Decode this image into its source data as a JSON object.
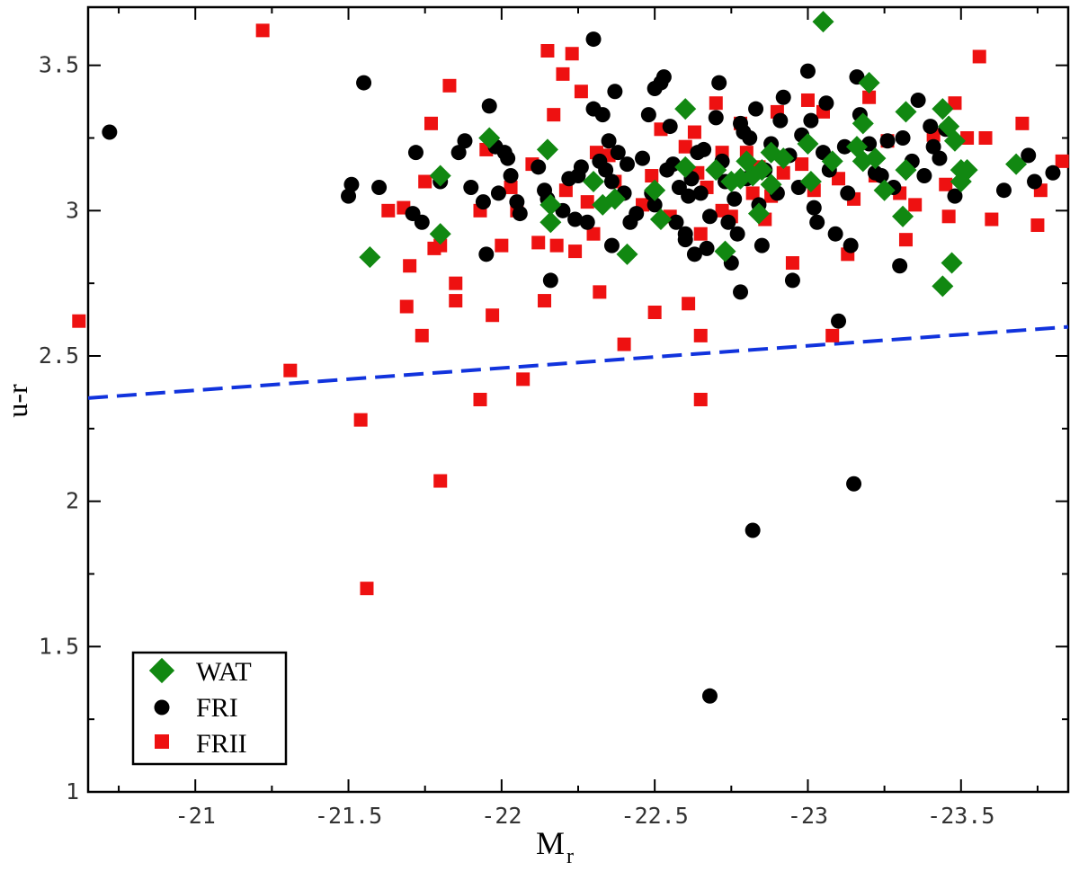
{
  "chart_data": {
    "type": "scatter",
    "title": "",
    "xlabel_main": "M",
    "xlabel_sub": "r",
    "ylabel": "u-r",
    "xlim": [
      -20.65,
      -23.85
    ],
    "ylim": [
      1,
      3.7
    ],
    "x_ticks": [
      -21,
      -21.5,
      -22,
      -22.5,
      -23,
      -23.5
    ],
    "x_tick_labels": [
      "-21",
      "-21.5",
      "-22",
      "-22.5",
      "-23",
      "-23.5"
    ],
    "y_ticks": [
      1,
      1.5,
      2,
      2.5,
      3,
      3.5
    ],
    "y_tick_labels": [
      "1",
      "1.5",
      "2",
      "2.5",
      "3",
      "3.5"
    ],
    "grid": false,
    "legend_position": "bottom-left",
    "legend": [
      {
        "label": "WAT",
        "marker": "diamond",
        "color": "#118811"
      },
      {
        "label": "FRI",
        "marker": "circle",
        "color": "#000000"
      },
      {
        "label": "FRII",
        "marker": "square",
        "color": "#ee1111"
      }
    ],
    "reference_line": {
      "style": "dashed",
      "color": "#1133dd",
      "x": [
        -20.65,
        -23.85
      ],
      "y": [
        2.355,
        2.6
      ]
    },
    "series": [
      {
        "name": "WAT",
        "marker": "diamond",
        "color": "#118811",
        "points": [
          [
            -21.57,
            2.84
          ],
          [
            -21.8,
            3.12
          ],
          [
            -21.8,
            2.92
          ],
          [
            -21.96,
            3.25
          ],
          [
            -22.15,
            3.21
          ],
          [
            -22.16,
            3.02
          ],
          [
            -22.16,
            2.96
          ],
          [
            -22.3,
            3.1
          ],
          [
            -22.33,
            3.02
          ],
          [
            -22.37,
            3.04
          ],
          [
            -22.41,
            2.85
          ],
          [
            -22.5,
            3.07
          ],
          [
            -22.52,
            2.97
          ],
          [
            -22.6,
            3.35
          ],
          [
            -22.6,
            3.15
          ],
          [
            -22.7,
            3.14
          ],
          [
            -22.75,
            3.1
          ],
          [
            -22.78,
            3.11
          ],
          [
            -22.8,
            3.17
          ],
          [
            -22.82,
            3.12
          ],
          [
            -22.85,
            3.14
          ],
          [
            -22.88,
            3.09
          ],
          [
            -22.88,
            3.2
          ],
          [
            -22.92,
            3.18
          ],
          [
            -22.84,
            2.99
          ],
          [
            -22.73,
            2.86
          ],
          [
            -23.0,
            3.23
          ],
          [
            -23.01,
            3.1
          ],
          [
            -23.05,
            3.65
          ],
          [
            -23.08,
            3.17
          ],
          [
            -23.18,
            3.17
          ],
          [
            -23.2,
            3.44
          ],
          [
            -23.16,
            3.22
          ],
          [
            -23.18,
            3.3
          ],
          [
            -23.22,
            3.18
          ],
          [
            -23.25,
            3.07
          ],
          [
            -23.32,
            3.34
          ],
          [
            -23.32,
            3.14
          ],
          [
            -23.31,
            2.98
          ],
          [
            -23.44,
            3.35
          ],
          [
            -23.46,
            3.29
          ],
          [
            -23.48,
            3.24
          ],
          [
            -23.5,
            3.14
          ],
          [
            -23.5,
            3.1
          ],
          [
            -23.52,
            3.14
          ],
          [
            -23.47,
            2.82
          ],
          [
            -23.44,
            2.74
          ],
          [
            -23.68,
            3.16
          ]
        ]
      },
      {
        "name": "FRI",
        "marker": "circle",
        "color": "#000000",
        "points": [
          [
            -20.72,
            3.27
          ],
          [
            -21.55,
            3.44
          ],
          [
            -21.51,
            3.09
          ],
          [
            -21.5,
            3.05
          ],
          [
            -21.6,
            3.08
          ],
          [
            -21.72,
            3.2
          ],
          [
            -21.71,
            2.99
          ],
          [
            -21.74,
            2.96
          ],
          [
            -21.8,
            3.1
          ],
          [
            -21.86,
            3.2
          ],
          [
            -21.88,
            3.24
          ],
          [
            -21.9,
            3.08
          ],
          [
            -21.94,
            3.03
          ],
          [
            -21.95,
            2.85
          ],
          [
            -21.96,
            3.36
          ],
          [
            -21.98,
            3.22
          ],
          [
            -21.99,
            3.06
          ],
          [
            -22.01,
            3.2
          ],
          [
            -22.02,
            3.18
          ],
          [
            -22.03,
            3.12
          ],
          [
            -22.05,
            3.03
          ],
          [
            -22.06,
            2.99
          ],
          [
            -22.12,
            3.15
          ],
          [
            -22.14,
            3.07
          ],
          [
            -22.15,
            3.04
          ],
          [
            -22.16,
            2.76
          ],
          [
            -22.2,
            3.0
          ],
          [
            -22.22,
            3.11
          ],
          [
            -22.24,
            2.97
          ],
          [
            -22.25,
            3.12
          ],
          [
            -22.26,
            3.15
          ],
          [
            -22.28,
            2.96
          ],
          [
            -22.3,
            3.35
          ],
          [
            -22.3,
            3.59
          ],
          [
            -22.32,
            3.17
          ],
          [
            -22.33,
            3.33
          ],
          [
            -22.34,
            3.14
          ],
          [
            -22.35,
            3.24
          ],
          [
            -22.36,
            3.1
          ],
          [
            -22.36,
            2.88
          ],
          [
            -22.37,
            3.41
          ],
          [
            -22.38,
            3.2
          ],
          [
            -22.4,
            3.06
          ],
          [
            -22.41,
            3.16
          ],
          [
            -22.42,
            2.96
          ],
          [
            -22.44,
            2.99
          ],
          [
            -22.46,
            3.18
          ],
          [
            -22.48,
            3.33
          ],
          [
            -22.49,
            3.06
          ],
          [
            -22.5,
            3.42
          ],
          [
            -22.5,
            3.02
          ],
          [
            -22.52,
            3.44
          ],
          [
            -22.53,
            3.46
          ],
          [
            -22.54,
            3.14
          ],
          [
            -22.55,
            3.29
          ],
          [
            -22.56,
            3.16
          ],
          [
            -22.57,
            2.96
          ],
          [
            -22.58,
            3.08
          ],
          [
            -22.6,
            2.92
          ],
          [
            -22.61,
            3.05
          ],
          [
            -22.62,
            3.11
          ],
          [
            -22.63,
            2.85
          ],
          [
            -22.64,
            3.2
          ],
          [
            -22.65,
            3.06
          ],
          [
            -22.66,
            3.21
          ],
          [
            -22.67,
            2.87
          ],
          [
            -22.68,
            2.98
          ],
          [
            -22.7,
            3.32
          ],
          [
            -22.71,
            3.44
          ],
          [
            -22.72,
            3.17
          ],
          [
            -22.73,
            3.1
          ],
          [
            -22.74,
            2.96
          ],
          [
            -22.75,
            2.82
          ],
          [
            -22.76,
            3.04
          ],
          [
            -22.78,
            3.3
          ],
          [
            -22.8,
            3.11
          ],
          [
            -22.81,
            3.25
          ],
          [
            -22.83,
            3.35
          ],
          [
            -22.84,
            3.02
          ],
          [
            -22.85,
            2.88
          ],
          [
            -22.86,
            3.14
          ],
          [
            -22.88,
            3.23
          ],
          [
            -22.9,
            3.06
          ],
          [
            -22.91,
            3.31
          ],
          [
            -22.92,
            3.39
          ],
          [
            -22.94,
            3.19
          ],
          [
            -22.95,
            2.76
          ],
          [
            -22.97,
            3.08
          ],
          [
            -22.98,
            3.26
          ],
          [
            -23.0,
            3.48
          ],
          [
            -23.01,
            3.31
          ],
          [
            -23.02,
            3.01
          ],
          [
            -23.03,
            2.96
          ],
          [
            -23.05,
            3.2
          ],
          [
            -23.06,
            3.37
          ],
          [
            -23.07,
            3.14
          ],
          [
            -23.09,
            2.92
          ],
          [
            -23.1,
            2.62
          ],
          [
            -23.12,
            3.22
          ],
          [
            -23.13,
            3.06
          ],
          [
            -23.14,
            2.88
          ],
          [
            -23.16,
            3.46
          ],
          [
            -23.17,
            3.33
          ],
          [
            -23.2,
            3.23
          ],
          [
            -23.22,
            3.13
          ],
          [
            -23.24,
            3.12
          ],
          [
            -23.26,
            3.24
          ],
          [
            -23.28,
            3.08
          ],
          [
            -23.3,
            2.81
          ],
          [
            -23.31,
            3.25
          ],
          [
            -23.34,
            3.17
          ],
          [
            -23.36,
            3.38
          ],
          [
            -23.38,
            3.12
          ],
          [
            -23.4,
            3.29
          ],
          [
            -23.41,
            3.22
          ],
          [
            -23.43,
            3.18
          ],
          [
            -23.45,
            3.28
          ],
          [
            -23.48,
            3.05
          ],
          [
            -23.64,
            3.07
          ],
          [
            -23.72,
            3.19
          ],
          [
            -23.74,
            3.1
          ],
          [
            -23.8,
            3.13
          ],
          [
            -22.68,
            1.33
          ],
          [
            -22.82,
            1.9
          ],
          [
            -23.15,
            2.06
          ],
          [
            -22.78,
            2.72
          ],
          [
            -22.77,
            2.92
          ],
          [
            -22.79,
            3.27
          ],
          [
            -22.62,
            3.11
          ],
          [
            -22.6,
            2.9
          ]
        ]
      },
      {
        "name": "FRII",
        "marker": "square",
        "color": "#ee1111",
        "points": [
          [
            -20.62,
            2.62
          ],
          [
            -21.22,
            3.62
          ],
          [
            -21.31,
            2.45
          ],
          [
            -21.54,
            2.28
          ],
          [
            -21.56,
            1.7
          ],
          [
            -21.63,
            3.0
          ],
          [
            -21.68,
            3.01
          ],
          [
            -21.7,
            2.81
          ],
          [
            -21.69,
            2.67
          ],
          [
            -21.74,
            2.57
          ],
          [
            -21.75,
            3.1
          ],
          [
            -21.77,
            3.3
          ],
          [
            -21.78,
            2.87
          ],
          [
            -21.8,
            2.88
          ],
          [
            -21.8,
            2.07
          ],
          [
            -21.83,
            3.43
          ],
          [
            -21.85,
            2.75
          ],
          [
            -21.85,
            2.69
          ],
          [
            -21.93,
            3.0
          ],
          [
            -21.93,
            2.35
          ],
          [
            -21.95,
            3.21
          ],
          [
            -21.97,
            2.64
          ],
          [
            -22.0,
            2.88
          ],
          [
            -22.03,
            3.08
          ],
          [
            -22.05,
            3.0
          ],
          [
            -22.07,
            2.42
          ],
          [
            -22.1,
            3.16
          ],
          [
            -22.12,
            2.89
          ],
          [
            -22.14,
            2.69
          ],
          [
            -22.15,
            3.55
          ],
          [
            -22.17,
            3.33
          ],
          [
            -22.18,
            2.88
          ],
          [
            -22.2,
            3.47
          ],
          [
            -22.21,
            3.07
          ],
          [
            -22.23,
            3.54
          ],
          [
            -22.24,
            2.86
          ],
          [
            -22.26,
            3.41
          ],
          [
            -22.28,
            3.03
          ],
          [
            -22.3,
            2.92
          ],
          [
            -22.31,
            3.2
          ],
          [
            -22.32,
            2.72
          ],
          [
            -22.35,
            3.19
          ],
          [
            -22.37,
            3.1
          ],
          [
            -22.4,
            2.54
          ],
          [
            -22.46,
            3.02
          ],
          [
            -22.49,
            3.12
          ],
          [
            -22.5,
            2.65
          ],
          [
            -22.52,
            3.28
          ],
          [
            -22.55,
            2.98
          ],
          [
            -22.6,
            3.22
          ],
          [
            -22.61,
            2.68
          ],
          [
            -22.63,
            3.27
          ],
          [
            -22.64,
            3.13
          ],
          [
            -22.65,
            2.92
          ],
          [
            -22.65,
            2.57
          ],
          [
            -22.65,
            2.35
          ],
          [
            -22.67,
            3.08
          ],
          [
            -22.7,
            3.37
          ],
          [
            -22.72,
            3.0
          ],
          [
            -22.75,
            2.98
          ],
          [
            -22.78,
            3.3
          ],
          [
            -22.8,
            3.2
          ],
          [
            -22.82,
            3.06
          ],
          [
            -22.84,
            3.15
          ],
          [
            -22.86,
            2.97
          ],
          [
            -22.9,
            3.34
          ],
          [
            -22.92,
            3.13
          ],
          [
            -22.95,
            2.82
          ],
          [
            -22.98,
            3.16
          ],
          [
            -23.0,
            3.38
          ],
          [
            -23.02,
            3.07
          ],
          [
            -23.05,
            3.34
          ],
          [
            -23.08,
            2.57
          ],
          [
            -23.1,
            3.11
          ],
          [
            -23.13,
            2.85
          ],
          [
            -23.15,
            3.04
          ],
          [
            -23.2,
            3.39
          ],
          [
            -23.22,
            3.12
          ],
          [
            -23.26,
            3.24
          ],
          [
            -23.3,
            3.06
          ],
          [
            -23.32,
            2.9
          ],
          [
            -23.35,
            3.02
          ],
          [
            -23.41,
            3.26
          ],
          [
            -23.45,
            3.09
          ],
          [
            -23.46,
            2.98
          ],
          [
            -23.48,
            3.37
          ],
          [
            -23.52,
            3.25
          ],
          [
            -23.56,
            3.53
          ],
          [
            -23.58,
            3.25
          ],
          [
            -23.6,
            2.97
          ],
          [
            -23.7,
            3.3
          ],
          [
            -23.75,
            2.95
          ],
          [
            -23.76,
            3.07
          ],
          [
            -23.83,
            3.17
          ],
          [
            -22.88,
            3.05
          ],
          [
            -22.72,
            3.2
          ]
        ]
      }
    ]
  }
}
